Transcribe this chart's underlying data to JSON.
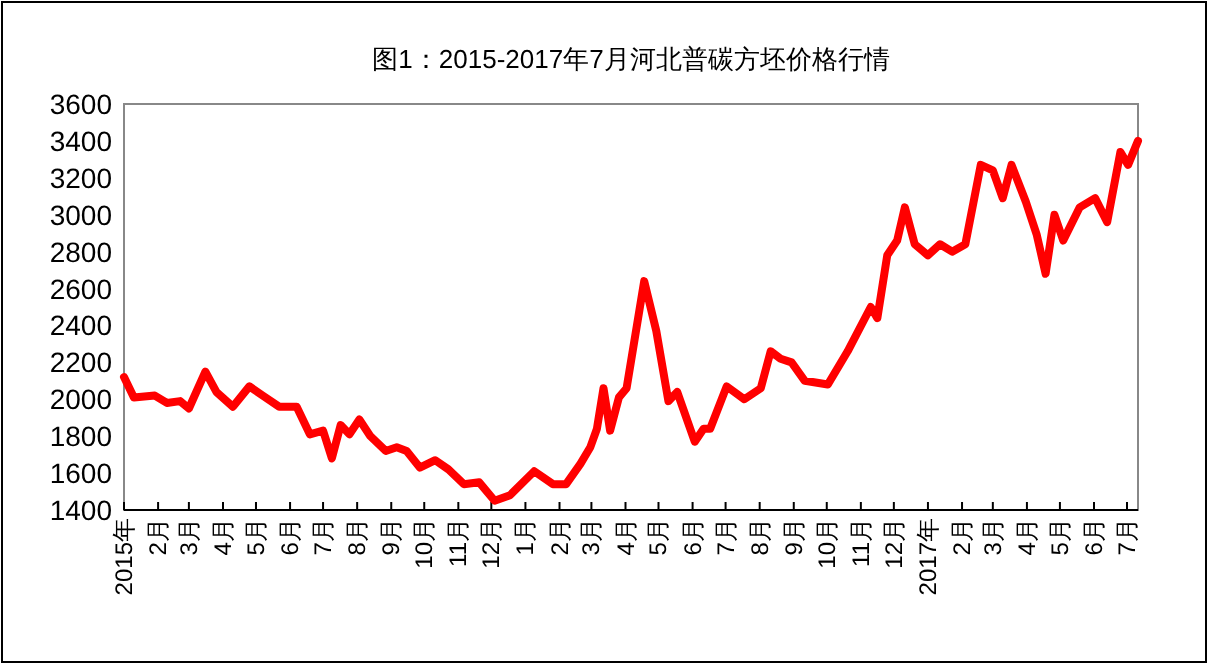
{
  "chart_data": {
    "type": "line",
    "title": "图1：2015-2017年7月河北普碳方坯价格行情",
    "x": [
      "2015-01-01",
      "2015-01-10",
      "2015-01-29",
      "2015-02-09",
      "2015-02-21",
      "2015-03-01",
      "2015-03-16",
      "2015-03-26",
      "2015-04-10",
      "2015-04-25",
      "2015-05-07",
      "2015-05-22",
      "2015-06-07",
      "2015-06-19",
      "2015-07-01",
      "2015-07-09",
      "2015-07-17",
      "2015-07-25",
      "2015-08-03",
      "2015-08-13",
      "2015-08-27",
      "2015-09-06",
      "2015-09-15",
      "2015-09-27",
      "2015-10-11",
      "2015-10-23",
      "2015-11-06",
      "2015-11-20",
      "2015-12-04",
      "2015-12-18",
      "2016-01-09",
      "2016-01-26",
      "2016-02-07",
      "2016-02-20",
      "2016-02-29",
      "2016-03-06",
      "2016-03-12",
      "2016-03-18",
      "2016-03-26",
      "2016-04-02",
      "2016-04-18",
      "2016-04-29",
      "2016-05-10",
      "2016-05-18",
      "2016-06-03",
      "2016-06-11",
      "2016-06-17",
      "2016-07-02",
      "2016-07-18",
      "2016-08-02",
      "2016-08-11",
      "2016-08-20",
      "2016-08-30",
      "2016-09-11",
      "2016-10-02",
      "2016-10-20",
      "2016-11-10",
      "2016-11-16",
      "2016-11-25",
      "2016-12-04",
      "2016-12-11",
      "2016-12-20",
      "2017-01-01",
      "2017-01-12",
      "2017-01-23",
      "2017-02-04",
      "2017-02-18",
      "2017-03-01",
      "2017-03-10",
      "2017-03-18",
      "2017-03-31",
      "2017-04-10",
      "2017-04-18",
      "2017-04-26",
      "2017-05-04",
      "2017-05-19",
      "2017-06-02",
      "2017-06-13",
      "2017-06-25",
      "2017-07-02",
      "2017-07-11"
    ],
    "series": [
      {
        "color": "#ff0000",
        "values": [
          2120,
          2010,
          2020,
          1980,
          1990,
          1950,
          2150,
          2040,
          1960,
          2070,
          2020,
          1960,
          1960,
          1810,
          1830,
          1680,
          1860,
          1810,
          1890,
          1800,
          1720,
          1740,
          1720,
          1630,
          1670,
          1620,
          1540,
          1550,
          1450,
          1480,
          1610,
          1540,
          1540,
          1650,
          1740,
          1840,
          2060,
          1830,
          2010,
          2060,
          2640,
          2370,
          1990,
          2040,
          1770,
          1840,
          1840,
          2070,
          2000,
          2060,
          2260,
          2220,
          2200,
          2100,
          2080,
          2260,
          2500,
          2440,
          2780,
          2860,
          3040,
          2840,
          2780,
          2840,
          2800,
          2840,
          3270,
          3240,
          3090,
          3270,
          3070,
          2890,
          2680,
          3000,
          2860,
          3040,
          3090,
          2960,
          3340,
          3270,
          3400
        ]
      }
    ],
    "xlim": [
      "2015-01-01",
      "2017-07-11"
    ],
    "xticks": [
      {
        "value": "2015-01-01",
        "label": "2015年"
      },
      {
        "value": "2015-02-01",
        "label": "2月"
      },
      {
        "value": "2015-03-01",
        "label": "3月"
      },
      {
        "value": "2015-04-01",
        "label": "4月"
      },
      {
        "value": "2015-05-01",
        "label": "5月"
      },
      {
        "value": "2015-06-01",
        "label": "6月"
      },
      {
        "value": "2015-07-01",
        "label": "7月"
      },
      {
        "value": "2015-08-01",
        "label": "8月"
      },
      {
        "value": "2015-09-01",
        "label": "9月"
      },
      {
        "value": "2015-10-01",
        "label": "10月"
      },
      {
        "value": "2015-11-01",
        "label": "11月"
      },
      {
        "value": "2015-12-01",
        "label": "12月"
      },
      {
        "value": "2016-01-01",
        "label": "1月"
      },
      {
        "value": "2016-02-01",
        "label": "2月"
      },
      {
        "value": "2016-03-01",
        "label": "3月"
      },
      {
        "value": "2016-04-01",
        "label": "4月"
      },
      {
        "value": "2016-05-01",
        "label": "5月"
      },
      {
        "value": "2016-06-01",
        "label": "6月"
      },
      {
        "value": "2016-07-01",
        "label": "7月"
      },
      {
        "value": "2016-08-01",
        "label": "8月"
      },
      {
        "value": "2016-09-01",
        "label": "9月"
      },
      {
        "value": "2016-10-01",
        "label": "10月"
      },
      {
        "value": "2016-11-01",
        "label": "11月"
      },
      {
        "value": "2016-12-01",
        "label": "12月"
      },
      {
        "value": "2017-01-01",
        "label": "2017年"
      },
      {
        "value": "2017-02-01",
        "label": "2月"
      },
      {
        "value": "2017-03-01",
        "label": "3月"
      },
      {
        "value": "2017-04-01",
        "label": "4月"
      },
      {
        "value": "2017-05-01",
        "label": "5月"
      },
      {
        "value": "2017-06-01",
        "label": "6月"
      },
      {
        "value": "2017-07-01",
        "label": "7月"
      }
    ],
    "ylim": [
      1400,
      3600
    ],
    "yticks": [
      1400,
      1600,
      1800,
      2000,
      2200,
      2400,
      2600,
      2800,
      3000,
      3200,
      3400,
      3600
    ],
    "grid": false,
    "marker": "none",
    "line_style": "solid"
  }
}
